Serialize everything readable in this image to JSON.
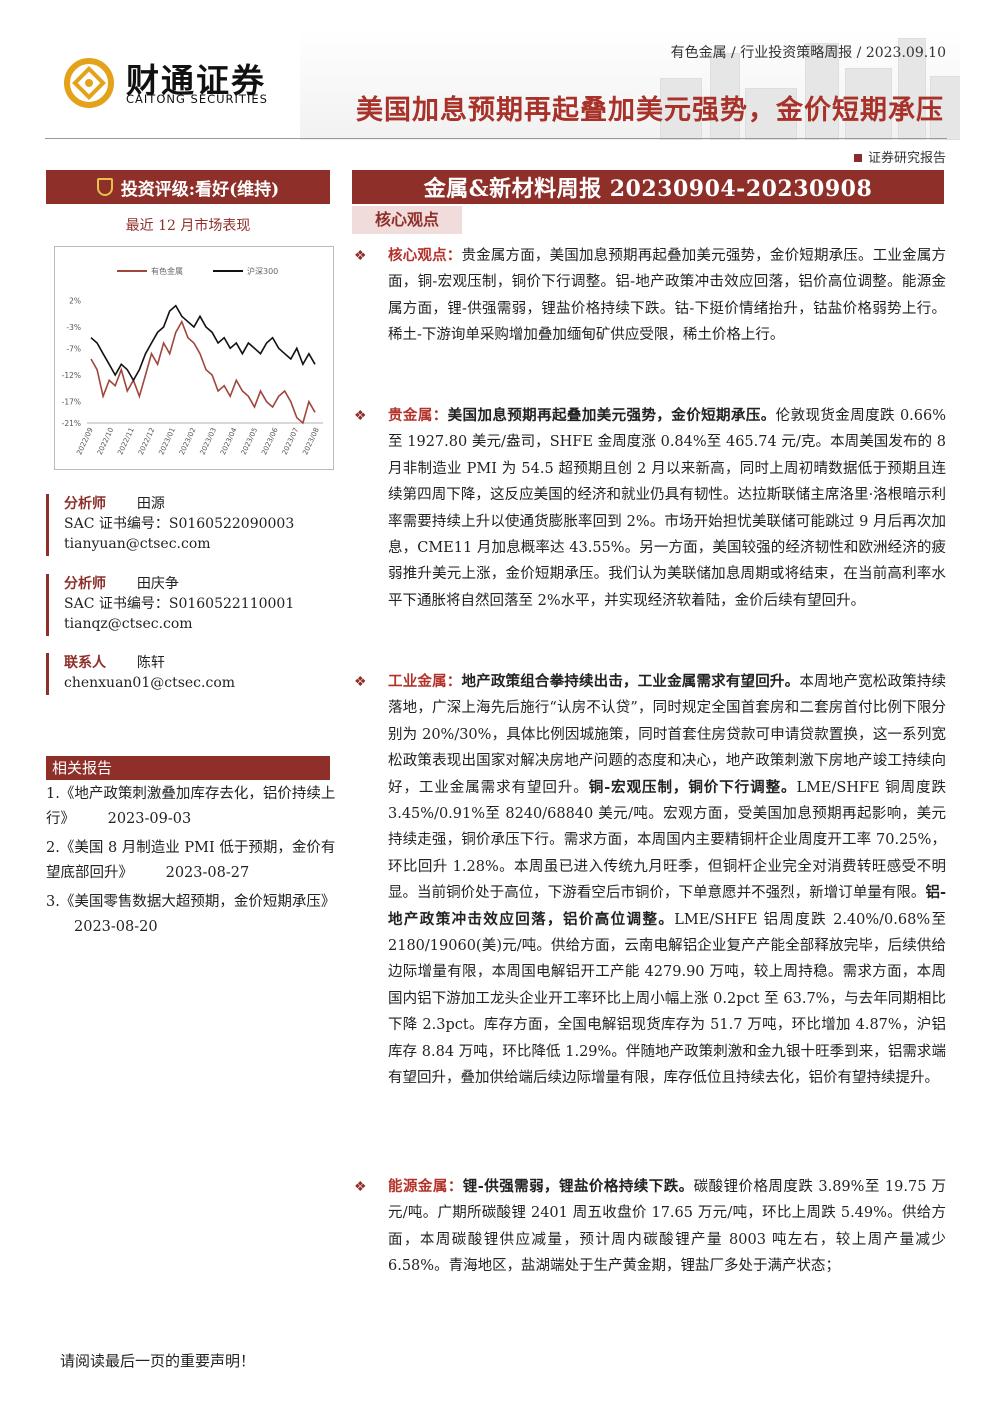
{
  "header": {
    "company_cn": "财通证券",
    "company_en": "CAITONG SECURITIES",
    "meta": "有色金属 / 行业投资策略周报 / 2023.09.10",
    "title": "美国加息预期再起叠加美元强势，金价短期承压",
    "report_type": "证券研究报告"
  },
  "left": {
    "rating": "投资评级:看好(维持)",
    "market_title": "最近 12 月市场表现",
    "analysts": [
      {
        "role": "分析师",
        "name": "田源",
        "sac": "SAC 证书编号：S0160522090003",
        "email": "tianyuan@ctsec.com"
      },
      {
        "role": "分析师",
        "name": "田庆争",
        "sac": "SAC 证书编号：S0160522110001",
        "email": "tianqz@ctsec.com"
      }
    ],
    "contact": {
      "role": "联系人",
      "name": "陈轩",
      "email": "chenxuan01@ctsec.com"
    },
    "related_head": "相关报告",
    "related": [
      {
        "title": "1.《地产政策刺激叠加库存去化，铝价持续上行》",
        "date": "2023-09-03"
      },
      {
        "title": "2.《美国 8 月制造业 PMI 低于预期，金价有望底部回升》",
        "date": "2023-08-27"
      },
      {
        "title": "3.《美国零售数据大超预期，金价短期承压》",
        "date": "2023-08-20"
      }
    ]
  },
  "chart_data": {
    "type": "line",
    "title": "",
    "xlabel": "",
    "ylabel": "",
    "y_ticks": [
      "2%",
      "-3%",
      "-7%",
      "-12%",
      "-17%",
      "-21%"
    ],
    "ylim": [
      -21,
      3
    ],
    "x_ticks": [
      "2022/09",
      "2022/10",
      "2022/11",
      "2022/12",
      "2023/01",
      "2023/02",
      "2023/03",
      "2023/04",
      "2023/05",
      "2023/06",
      "2023/07",
      "2023/08"
    ],
    "series": [
      {
        "name": "有色金属",
        "color": "#a0463d",
        "values": [
          -9,
          -11,
          -16,
          -13,
          -14,
          -11,
          -15,
          -13,
          -16,
          -12,
          -8,
          -10,
          -6,
          -8,
          -4,
          -2,
          -5,
          -6,
          -8,
          -11,
          -12,
          -15,
          -14,
          -16,
          -13,
          -15,
          -16,
          -18,
          -15,
          -17,
          -18,
          -16,
          -15,
          -17,
          -20,
          -21,
          -17,
          -19
        ]
      },
      {
        "name": "沪深300",
        "color": "#111111",
        "values": [
          -5,
          -6,
          -8,
          -10,
          -12,
          -10,
          -11,
          -13,
          -11,
          -8,
          -6,
          -4,
          -3,
          0,
          1,
          -1,
          -2,
          -3,
          -1,
          -3,
          -4,
          -6,
          -5,
          -7,
          -6,
          -8,
          -6,
          -7,
          -8,
          -6,
          -5,
          -7,
          -8,
          -9,
          -7,
          -10,
          -8,
          -10
        ]
      }
    ]
  },
  "right": {
    "banner": "金属&新材料周报 20230904-20230908",
    "core_label": "核心观点",
    "s1": {
      "label": "核心观点：",
      "text": "贵金属方面，美国加息预期再起叠加美元强势，金价短期承压。工业金属方面，铜-宏观压制，铜价下行调整。铝-地产政策冲击效应回落，铝价高位调整。能源金属方面，锂-供强需弱，锂盐价格持续下跌。钴-下挺价情绪抬升，钴盐价格弱势上行。稀土-下游询单采购增加叠加缅甸矿供应受限，稀土价格上行。"
    },
    "s2": {
      "label": "贵金属：",
      "head": "美国加息预期再起叠加美元强势，金价短期承压。",
      "text": "伦敦现货金周度跌 0.66%至 1927.80 美元/盎司，SHFE 金周度涨 0.84%至 465.74 元/克。本周美国发布的 8 月非制造业 PMI 为 54.5 超预期且创 2 月以来新高，同时上周初晴数据低于预期且连续第四周下降，这反应美国的经济和就业仍具有韧性。达拉斯联储主席洛里·洛根暗示利率需要持续上升以使通货膨胀率回到 2%。市场开始担忧美联储可能跳过 9 月后再次加息，CME11 月加息概率达 43.55%。另一方面，美国较强的经济韧性和欧洲经济的疲弱推升美元上涨，金价短期承压。我们认为美联储加息周期或将结束，在当前高利率水平下通胀将自然回落至 2%水平，并实现经济软着陆，金价后续有望回升。"
    },
    "s3": {
      "label": "工业金属：",
      "head": "地产政策组合拳持续出击，工业金属需求有望回升。",
      "text1": "本周地产宽松政策持续落地，广深上海先后施行“认房不认贷”，同时规定全国首套房和二套房首付比例下限分别为 20%/30%，具体比例因城施策，同时首套住房贷款可申请贷款置换，这一系列宽松政策表现出国家对解决房地产问题的态度和决心，地产政策刺激下房地产竣工持续向好，工业金属需求有望回升。",
      "head2": "铜-宏观压制，铜价下行调整。",
      "text2": "LME/SHFE 铜周度跌 3.45%/0.91%至 8240/68840 美元/吨。宏观方面，受美国加息预期再起影响，美元持续走强，铜价承压下行。需求方面，本周国内主要精铜杆企业周度开工率 70.25%，环比回升 1.28%。本周虽已进入传统九月旺季，但铜杆企业完全对消费转旺感受不明显。当前铜价处于高位，下游看空后市铜价，下单意愿并不强烈，新增订单量有限。",
      "head3": "铝-地产政策冲击效应回落，铝价高位调整。",
      "text3": "LME/SHFE 铝周度跌 2.40%/0.68%至 2180/19060(美)元/吨。供给方面，云南电解铝企业复产产能全部释放完毕，后续供给边际增量有限，本周国电解铝开工产能 4279.90 万吨，较上周持稳。需求方面，本周国内铝下游加工龙头企业开工率环比上周小幅上涨 0.2pct 至 63.7%，与去年同期相比下降 2.3pct。库存方面，全国电解铝现货库存为 51.7 万吨，环比增加 4.87%，沪铝库存 8.84 万吨，环比降低 1.29%。伴随地产政策刺激和金九银十旺季到来，铝需求端有望回升，叠加供给端后续边际增量有限，库存低位且持续去化，铝价有望持续提升。"
    },
    "s4": {
      "label": "能源金属：",
      "head": "锂-供强需弱，锂盐价格持续下跌。",
      "text": "碳酸锂价格周度跌 3.89%至 19.75 万元/吨。广期所碳酸锂 2401 周五收盘价 17.65 万元/吨，环比上周跌 5.49%。供给方面，本周碳酸锂供应减量，预计周内碳酸锂产量 8003 吨左右，较上周产量减少 6.58%。青海地区，盐湖端处于生产黄金期，锂盐厂多处于满产状态；"
    }
  },
  "footer": "请阅读最后一页的重要声明！"
}
